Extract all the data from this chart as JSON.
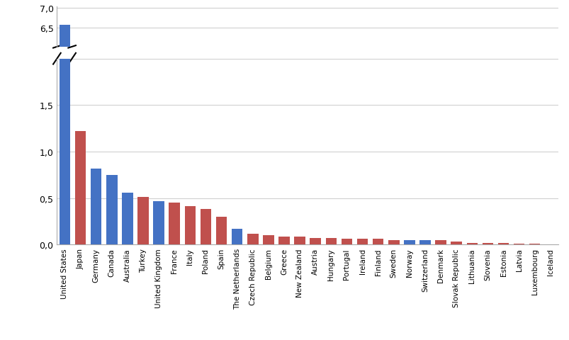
{
  "categories": [
    "United States",
    "Japan",
    "Germany",
    "Canada",
    "Australia",
    "Turkey",
    "United Kingdom",
    "France",
    "Italy",
    "Poland",
    "Spain",
    "The Netherlands",
    "Czech Republic",
    "Belgium",
    "Greece",
    "New Zealand",
    "Austria",
    "Hungary",
    "Portugal",
    "Ireland",
    "Finland",
    "Sweden",
    "Norway",
    "Switzerland",
    "Denmark",
    "Slovak Republic",
    "Lithuania",
    "Slovenia",
    "Estonia",
    "Latvia",
    "Luxembourg",
    "Iceland"
  ],
  "values": [
    6.56,
    1.22,
    0.82,
    0.75,
    0.56,
    0.51,
    0.47,
    0.45,
    0.41,
    0.38,
    0.3,
    0.17,
    0.12,
    0.1,
    0.09,
    0.09,
    0.07,
    0.07,
    0.06,
    0.06,
    0.06,
    0.05,
    0.05,
    0.05,
    0.05,
    0.03,
    0.02,
    0.02,
    0.02,
    0.01,
    0.01,
    0.005
  ],
  "colors": [
    "#4472C4",
    "#C0504D",
    "#4472C4",
    "#4472C4",
    "#4472C4",
    "#C0504D",
    "#4472C4",
    "#C0504D",
    "#C0504D",
    "#C0504D",
    "#C0504D",
    "#4472C4",
    "#C0504D",
    "#C0504D",
    "#C0504D",
    "#C0504D",
    "#C0504D",
    "#C0504D",
    "#C0504D",
    "#C0504D",
    "#C0504D",
    "#C0504D",
    "#4472C4",
    "#4472C4",
    "#C0504D",
    "#C0504D",
    "#C0504D",
    "#C0504D",
    "#C0504D",
    "#C0504D",
    "#C0504D",
    "#C0504D"
  ],
  "background_color": "#FFFFFF",
  "gridcolor": "#D0D0D0"
}
